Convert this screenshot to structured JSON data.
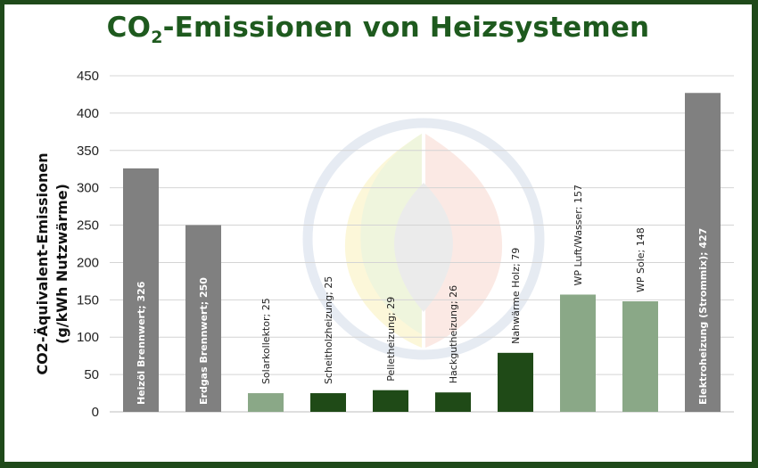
{
  "chart_data": {
    "type": "bar",
    "title_prefix": "CO",
    "title_sub": "2",
    "title_suffix": "-Emissionen von Heizsystemen",
    "ylabel_line1": "CO2-Äquivalent-Emissionen",
    "ylabel_line2": "(g/kWh Nutzwärme)",
    "xlabel": "",
    "ylim": [
      0,
      450
    ],
    "yticks": [
      0,
      50,
      100,
      150,
      200,
      250,
      300,
      350,
      400,
      450
    ],
    "grid": true,
    "categories": [
      "Heizöl Brennwert",
      "Erdgas Brennwert",
      "Solarkollektor",
      "Scheitholzheizung",
      "Pelletheizung",
      "Hackgutheizung",
      "Nahwärme Holz",
      "WP Luft/Wasser",
      "WP Sole",
      "Elektroheizung (Strommix)"
    ],
    "values": [
      326,
      250,
      25,
      25,
      29,
      26,
      79,
      157,
      148,
      427
    ],
    "data_labels": [
      "Heizöl Brennwert; 326",
      "Erdgas Brennwert; 250",
      "Solarkollektor; 25",
      "Scheitholzheizung; 25",
      "Pelletheizung; 29",
      "Hackgutheizung; 26",
      "Nahwärme Holz; 79",
      "WP Luft/Wasser; 157",
      "WP Sole; 148",
      "Elektroheizung (Strommix); 427"
    ],
    "colors": [
      "#808080",
      "#808080",
      "#8aa887",
      "#1f4a17",
      "#1f4a17",
      "#1f4a17",
      "#1f4a17",
      "#8aa887",
      "#8aa887",
      "#808080"
    ],
    "label_inside": [
      true,
      true,
      false,
      false,
      false,
      false,
      false,
      false,
      false,
      true
    ]
  }
}
